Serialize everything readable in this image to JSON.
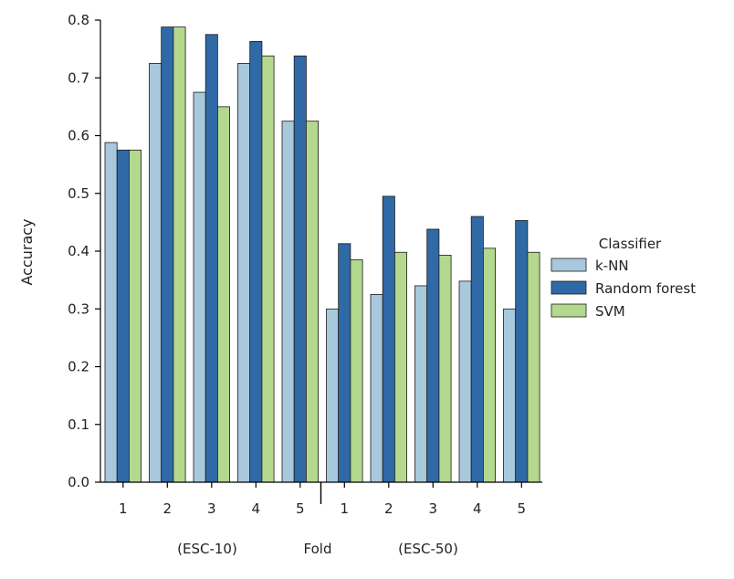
{
  "chart_data": {
    "type": "bar",
    "ylabel": "Accuracy",
    "xlabel": "Fold",
    "group_labels": [
      "(ESC-10)",
      "(ESC-50)"
    ],
    "categories": [
      "1",
      "2",
      "3",
      "4",
      "5",
      "1",
      "2",
      "3",
      "4",
      "5"
    ],
    "ylim": [
      0,
      0.8
    ],
    "yticks": [
      "0.0",
      "0.1",
      "0.2",
      "0.3",
      "0.4",
      "0.5",
      "0.6",
      "0.7",
      "0.8"
    ],
    "legend_title": "Classifier",
    "legend_position": "right",
    "grid": false,
    "series": [
      {
        "name": "k-NN",
        "color": "#a8c8dc",
        "values": [
          0.588,
          0.725,
          0.675,
          0.725,
          0.625,
          0.3,
          0.325,
          0.34,
          0.348,
          0.3
        ]
      },
      {
        "name": "Random forest",
        "color": "#2f6aa6",
        "values": [
          0.575,
          0.788,
          0.775,
          0.763,
          0.738,
          0.413,
          0.495,
          0.438,
          0.46,
          0.453
        ]
      },
      {
        "name": "SVM",
        "color": "#b4d88e",
        "values": [
          0.575,
          0.788,
          0.65,
          0.738,
          0.625,
          0.385,
          0.398,
          0.393,
          0.405,
          0.398
        ]
      }
    ]
  }
}
